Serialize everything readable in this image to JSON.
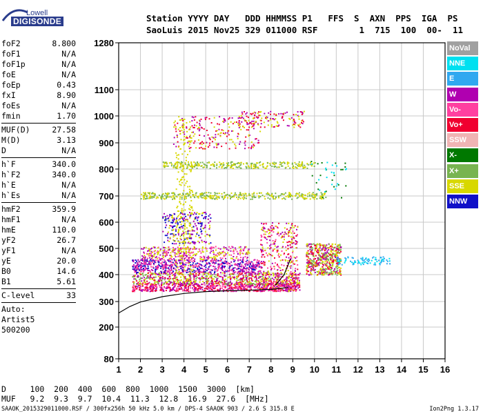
{
  "logo": {
    "line1": "Lowell",
    "line2": "DIGISONDE"
  },
  "header": {
    "line1": "Station YYYY DAY   DDD HHMMSS P1   FFS  S  AXN  PPS  IGA  PS",
    "line2": "SaoLuis 2015 Nov25 329 011000 RSF        1  715  100  00-  11"
  },
  "params": [
    {
      "label": "foF2",
      "value": "8.800"
    },
    {
      "label": "foF1",
      "value": "N/A"
    },
    {
      "label": "foF1p",
      "value": "N/A"
    },
    {
      "label": "foE",
      "value": "N/A"
    },
    {
      "label": "foEp",
      "value": "0.43"
    },
    {
      "label": "fxI",
      "value": "8.90"
    },
    {
      "label": "foEs",
      "value": "N/A"
    },
    {
      "label": "fmin",
      "value": "1.70"
    },
    {
      "label": "MUF(D)",
      "value": "27.58"
    },
    {
      "label": "M(D)",
      "value": "3.13"
    },
    {
      "label": "D",
      "value": "N/A"
    },
    {
      "label": "h`F",
      "value": "340.0"
    },
    {
      "label": "h`F2",
      "value": "340.0"
    },
    {
      "label": "h`E",
      "value": "N/A"
    },
    {
      "label": "h`Es",
      "value": "N/A"
    },
    {
      "label": "hmF2",
      "value": "359.9"
    },
    {
      "label": "hmF1",
      "value": "N/A"
    },
    {
      "label": "hmE",
      "value": "110.0"
    },
    {
      "label": "yF2",
      "value": "26.7"
    },
    {
      "label": "yF1",
      "value": "N/A"
    },
    {
      "label": "yE",
      "value": "20.0"
    },
    {
      "label": "B0",
      "value": "14.6"
    },
    {
      "label": "B1",
      "value": "5.61"
    },
    {
      "label": "C-level",
      "value": "33"
    }
  ],
  "autoscaling": {
    "line1": "Auto:",
    "line2": "Artist5",
    "line3": "500200"
  },
  "legend": [
    {
      "name": "NoVal",
      "color": "#a0a0a0"
    },
    {
      "name": "NNE",
      "color": "#00e0f0"
    },
    {
      "name": "E",
      "color": "#30a8f0"
    },
    {
      "name": "W",
      "color": "#b000b0"
    },
    {
      "name": "Vo-",
      "color": "#ff40a0"
    },
    {
      "name": "Vo+",
      "color": "#f00030"
    },
    {
      "name": "SSW",
      "color": "#f0b4b4"
    },
    {
      "name": "X-",
      "color": "#007800"
    },
    {
      "name": "X+",
      "color": "#78b450"
    },
    {
      "name": "SSE",
      "color": "#d8d800"
    },
    {
      "name": "NNW",
      "color": "#1010c8"
    }
  ],
  "chart_data": {
    "type": "scatter",
    "x_ticks": [
      "1",
      "2",
      "3",
      "4",
      "5",
      "6",
      "7",
      "8",
      "9",
      "10",
      "11",
      "12",
      "13",
      "14",
      "15",
      "16"
    ],
    "y_ticks": [
      "80",
      "200",
      "300",
      "400",
      "500",
      "600",
      "700",
      "800",
      "900",
      "1000",
      "1100",
      "1280"
    ],
    "xlim": [
      1,
      16
    ],
    "ylim": [
      80,
      1280
    ],
    "y_scale": "nonlinear",
    "grid": true,
    "profile_curve": {
      "x": [
        1.0,
        1.5,
        2.0,
        3.0,
        4.0,
        5.0,
        6.0,
        7.0,
        8.0,
        8.8
      ],
      "y": [
        255,
        280,
        298,
        318,
        330,
        337,
        340,
        342,
        345,
        352
      ]
    },
    "trace_curve": {
      "x": [
        8.2,
        8.6,
        8.9
      ],
      "y": [
        360,
        400,
        460
      ]
    }
  },
  "bottom": {
    "d_line": "D     100  200  400  600  800  1000  1500  3000  [km]",
    "muf_line": "MUF   9.2  9.3  9.7  10.4  11.3  12.8  16.9  27.6  [MHz]"
  },
  "footer": {
    "left": "SAAOK_2015329011000.RSF / 300fx256h 50 kHz 5.0 km / DPS-4 SAAOK 903 / 2.6 S 315.8 E",
    "right": "Ion2Png 1.3.17"
  }
}
